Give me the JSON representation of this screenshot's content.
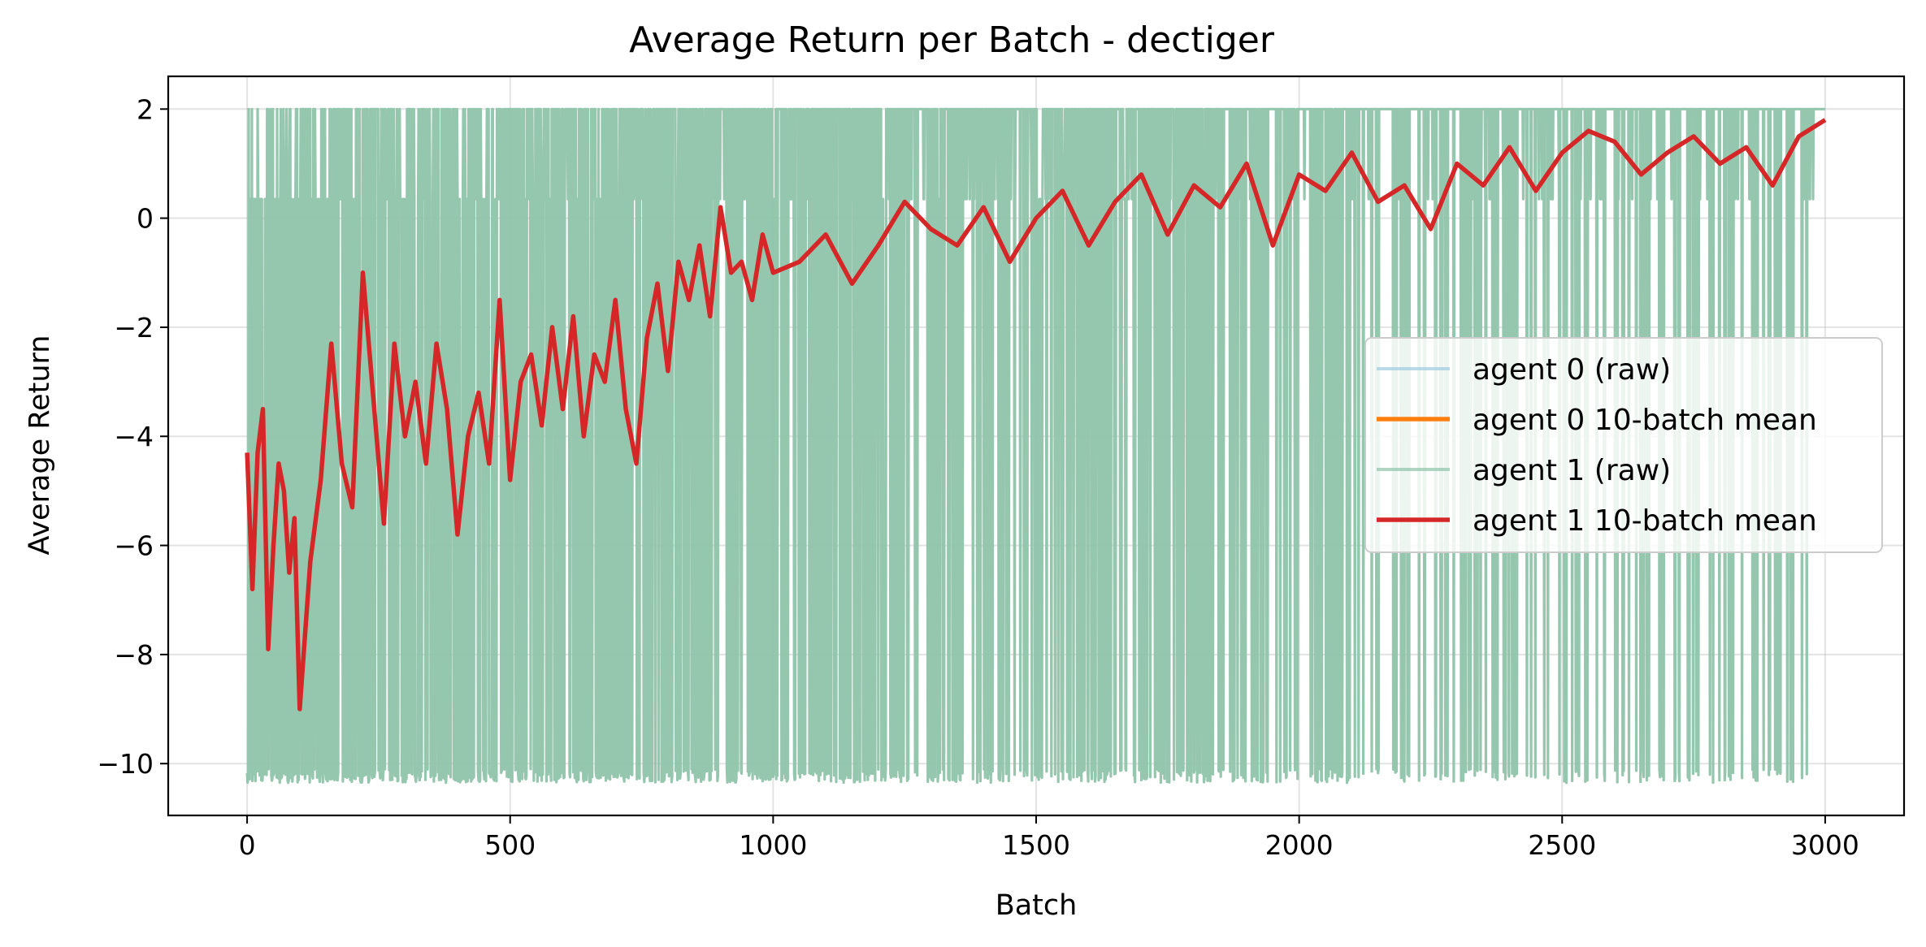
{
  "chart_data": {
    "type": "line",
    "title": "Average Return per Batch - dectiger",
    "xlabel": "Batch",
    "ylabel": "Average Return",
    "xlim": [
      -150,
      3150
    ],
    "ylim": [
      -10.95,
      2.6
    ],
    "xticks": [
      0,
      500,
      1000,
      1500,
      2000,
      2500,
      3000
    ],
    "xtick_labels": [
      "0",
      "500",
      "1000",
      "1500",
      "2000",
      "2500",
      "3000"
    ],
    "yticks": [
      2,
      0,
      -2,
      -4,
      -6,
      -8,
      -10
    ],
    "ytick_labels": [
      "2",
      "0",
      "−2",
      "−4",
      "−6",
      "−8",
      "−10"
    ],
    "grid": true,
    "legend_position": "center-right",
    "series": [
      {
        "name": "agent 0 (raw)",
        "color": "#9ecae1",
        "style": "raw",
        "x_range": [
          0,
          3000
        ]
      },
      {
        "name": "agent 0 10-batch mean",
        "color": "#ff7f0e",
        "style": "mean"
      },
      {
        "name": "agent 1 (raw)",
        "color": "#8fc3aa",
        "style": "raw",
        "x_range": [
          0,
          3000
        ],
        "levels": [
          2.0,
          0.35,
          -10.1
        ],
        "approx_fraction_at_2_by_x": [
          [
            0,
            0.25
          ],
          [
            500,
            0.35
          ],
          [
            1000,
            0.5
          ],
          [
            1500,
            0.65
          ],
          [
            2000,
            0.75
          ],
          [
            2500,
            0.82
          ],
          [
            3000,
            0.85
          ]
        ]
      },
      {
        "name": "agent 1 10-batch mean",
        "color": "#d62728",
        "style": "mean",
        "x": [
          0,
          10,
          20,
          30,
          40,
          50,
          60,
          70,
          80,
          90,
          100,
          120,
          140,
          160,
          180,
          200,
          220,
          240,
          260,
          280,
          300,
          320,
          340,
          360,
          380,
          400,
          420,
          440,
          460,
          480,
          500,
          520,
          540,
          560,
          580,
          600,
          620,
          640,
          660,
          680,
          700,
          720,
          740,
          760,
          780,
          800,
          820,
          840,
          860,
          880,
          900,
          920,
          940,
          960,
          980,
          1000,
          1050,
          1100,
          1150,
          1200,
          1250,
          1300,
          1350,
          1400,
          1450,
          1500,
          1550,
          1600,
          1650,
          1700,
          1750,
          1800,
          1850,
          1900,
          1950,
          2000,
          2050,
          2100,
          2150,
          2200,
          2250,
          2300,
          2350,
          2400,
          2450,
          2500,
          2550,
          2600,
          2650,
          2700,
          2750,
          2800,
          2850,
          2900,
          2950,
          3000
        ],
        "values": [
          -4.3,
          -6.8,
          -4.3,
          -3.5,
          -7.9,
          -6.0,
          -4.5,
          -5.0,
          -6.5,
          -5.5,
          -9.0,
          -6.3,
          -4.8,
          -2.3,
          -4.5,
          -5.3,
          -1.0,
          -3.3,
          -5.6,
          -2.3,
          -4.0,
          -3.0,
          -4.5,
          -2.3,
          -3.5,
          -5.8,
          -4.0,
          -3.2,
          -4.5,
          -1.5,
          -4.8,
          -3.0,
          -2.5,
          -3.8,
          -2.0,
          -3.5,
          -1.8,
          -4.0,
          -2.5,
          -3.0,
          -1.5,
          -3.5,
          -4.5,
          -2.2,
          -1.2,
          -2.8,
          -0.8,
          -1.5,
          -0.5,
          -1.8,
          0.2,
          -1.0,
          -0.8,
          -1.5,
          -0.3,
          -1.0,
          -0.8,
          -0.3,
          -1.2,
          -0.5,
          0.3,
          -0.2,
          -0.5,
          0.2,
          -0.8,
          0.0,
          0.5,
          -0.5,
          0.3,
          0.8,
          -0.3,
          0.6,
          0.2,
          1.0,
          -0.5,
          0.8,
          0.5,
          1.2,
          0.3,
          0.6,
          -0.2,
          1.0,
          0.6,
          1.3,
          0.5,
          1.2,
          1.6,
          1.4,
          0.8,
          1.2,
          1.5,
          1.0,
          1.3,
          0.6,
          1.5,
          1.8
        ]
      }
    ]
  }
}
